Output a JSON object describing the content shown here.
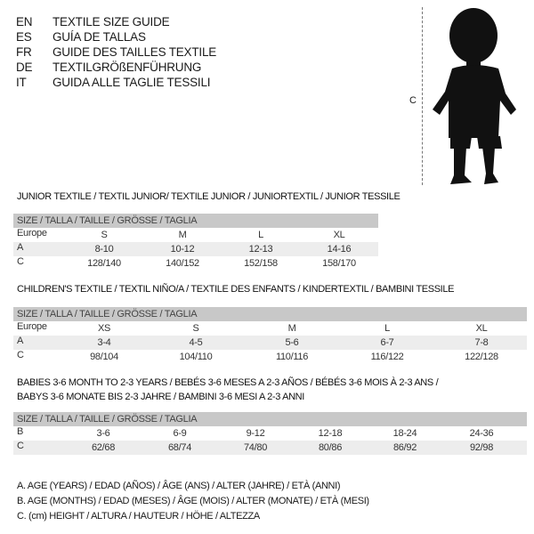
{
  "header": {
    "lines": [
      {
        "code": "EN",
        "text": "TEXTILE SIZE GUIDE"
      },
      {
        "code": "ES",
        "text": "GUÍA DE TALLAS"
      },
      {
        "code": "FR",
        "text": "GUIDE DES TAILLES TEXTILE"
      },
      {
        "code": "DE",
        "text": "TEXTILGRÖßENFÜHRUNG"
      },
      {
        "code": "IT",
        "text": "GUIDA ALLE TAGLIE TESSILI"
      }
    ]
  },
  "figure": {
    "measure_label": "C",
    "icon": "child-silhouette"
  },
  "tables": [
    {
      "title": [
        "JUNIOR TEXTILE / TEXTIL JUNIOR/ TEXTILE JUNIOR / JUNIORTEXTIL / JUNIOR TESSILE"
      ],
      "header": "SIZE / TALLA / TAILLE / GRÖSSE / TAGLIA",
      "rows": [
        {
          "label": "Europe",
          "values": [
            "S",
            "M",
            "L",
            "XL"
          ]
        },
        {
          "label": "A",
          "values": [
            "8-10",
            "10-12",
            "12-13",
            "14-16"
          ]
        },
        {
          "label": "C",
          "values": [
            "128/140",
            "140/152",
            "152/158",
            "158/170"
          ]
        }
      ]
    },
    {
      "title": [
        "CHILDREN'S TEXTILE / TEXTIL NIÑO/A / TEXTILE DES ENFANTS / KINDERTEXTIL / BAMBINI TESSILE"
      ],
      "header": "SIZE / TALLA / TAILLE / GRÖSSE / TAGLIA",
      "rows": [
        {
          "label": "Europe",
          "values": [
            "XS",
            "S",
            "M",
            "L",
            "XL"
          ]
        },
        {
          "label": "A",
          "values": [
            "3-4",
            "4-5",
            "5-6",
            "6-7",
            "7-8"
          ]
        },
        {
          "label": "C",
          "values": [
            "98/104",
            "104/110",
            "110/116",
            "116/122",
            "122/128"
          ]
        }
      ]
    },
    {
      "title": [
        "BABIES 3-6 MONTH TO 2-3 YEARS / BEBÉS 3-6 MESES A 2-3 AÑOS / BÉBÉS 3-6 MOIS À 2-3 ANS /",
        "BABYS 3-6 MONATE BIS 2-3 JAHRE / BAMBINI 3-6 MESI A 2-3 ANNI"
      ],
      "header": "SIZE / TALLA / TAILLE / GRÖSSE / TAGLIA",
      "rows": [
        {
          "label": "B",
          "values": [
            "3-6",
            "6-9",
            "9-12",
            "12-18",
            "18-24",
            "24-36"
          ]
        },
        {
          "label": "C",
          "values": [
            "62/68",
            "68/74",
            "74/80",
            "80/86",
            "86/92",
            "92/98"
          ]
        }
      ]
    }
  ],
  "legend": [
    "A. AGE (YEARS) / EDAD (AÑOS) / ÂGE (ANS) / ALTER (JAHRE) / ETÀ (ANNI)",
    "B. AGE (MONTHS) / EDAD (MESES) / ÂGE (MOIS) / ALTER (MONATE) / ETÀ (MESI)",
    "C. (cm) HEIGHT / ALTURA / HAUTEUR / HÖHE / ALTEZZA"
  ],
  "colors": {
    "header_bar": "#c8c8c8",
    "stripe": "#ededed"
  }
}
